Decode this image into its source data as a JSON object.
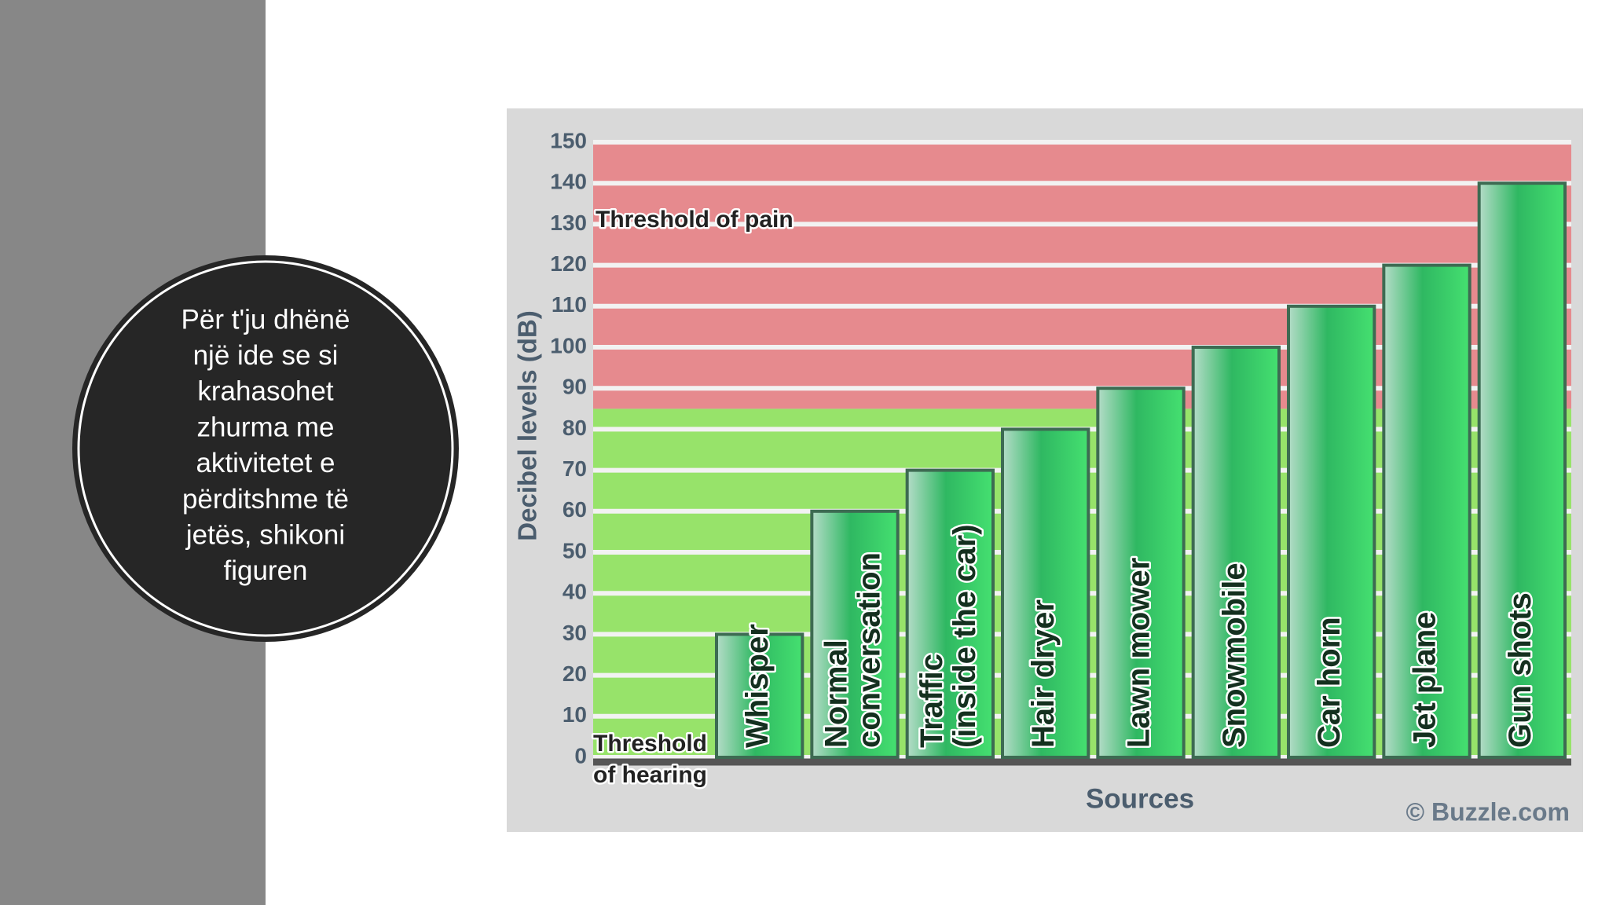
{
  "slide": {
    "text_lines": [
      "Për t'ju dhënë",
      "një ide se si",
      "krahasohet",
      "zhurma me",
      "aktivitetet e",
      "përditshme të",
      "jetës, shikoni",
      "figuren"
    ]
  },
  "chart_data": {
    "type": "bar",
    "x_label": "Sources",
    "y_label": "Decibel levels (dB)",
    "credit": "© Buzzle.com",
    "annotations": {
      "pain": "Threshold of pain",
      "hearing": [
        "Threshold",
        "of hearing"
      ]
    },
    "categories": [
      [
        "Whisper"
      ],
      [
        "Normal",
        "conversation"
      ],
      [
        "Traffic",
        "(inside the car)"
      ],
      [
        "Hair dryer"
      ],
      [
        "Lawn mower"
      ],
      [
        "Snowmobile"
      ],
      [
        "Car horn"
      ],
      [
        "Jet plane"
      ],
      [
        "Gun shots"
      ]
    ],
    "values": [
      30,
      60,
      70,
      80,
      90,
      100,
      110,
      120,
      140
    ],
    "color": "#2fb862",
    "zones": [
      {
        "from": 0,
        "to": 85,
        "color": "#97e36a"
      },
      {
        "from": 85,
        "to": 150,
        "color": "#e68a8e"
      }
    ],
    "ylim": [
      0,
      150
    ],
    "yticks": [
      0,
      10,
      20,
      30,
      40,
      50,
      60,
      70,
      80,
      90,
      100,
      110,
      120,
      130,
      140,
      150
    ],
    "grid": true
  }
}
